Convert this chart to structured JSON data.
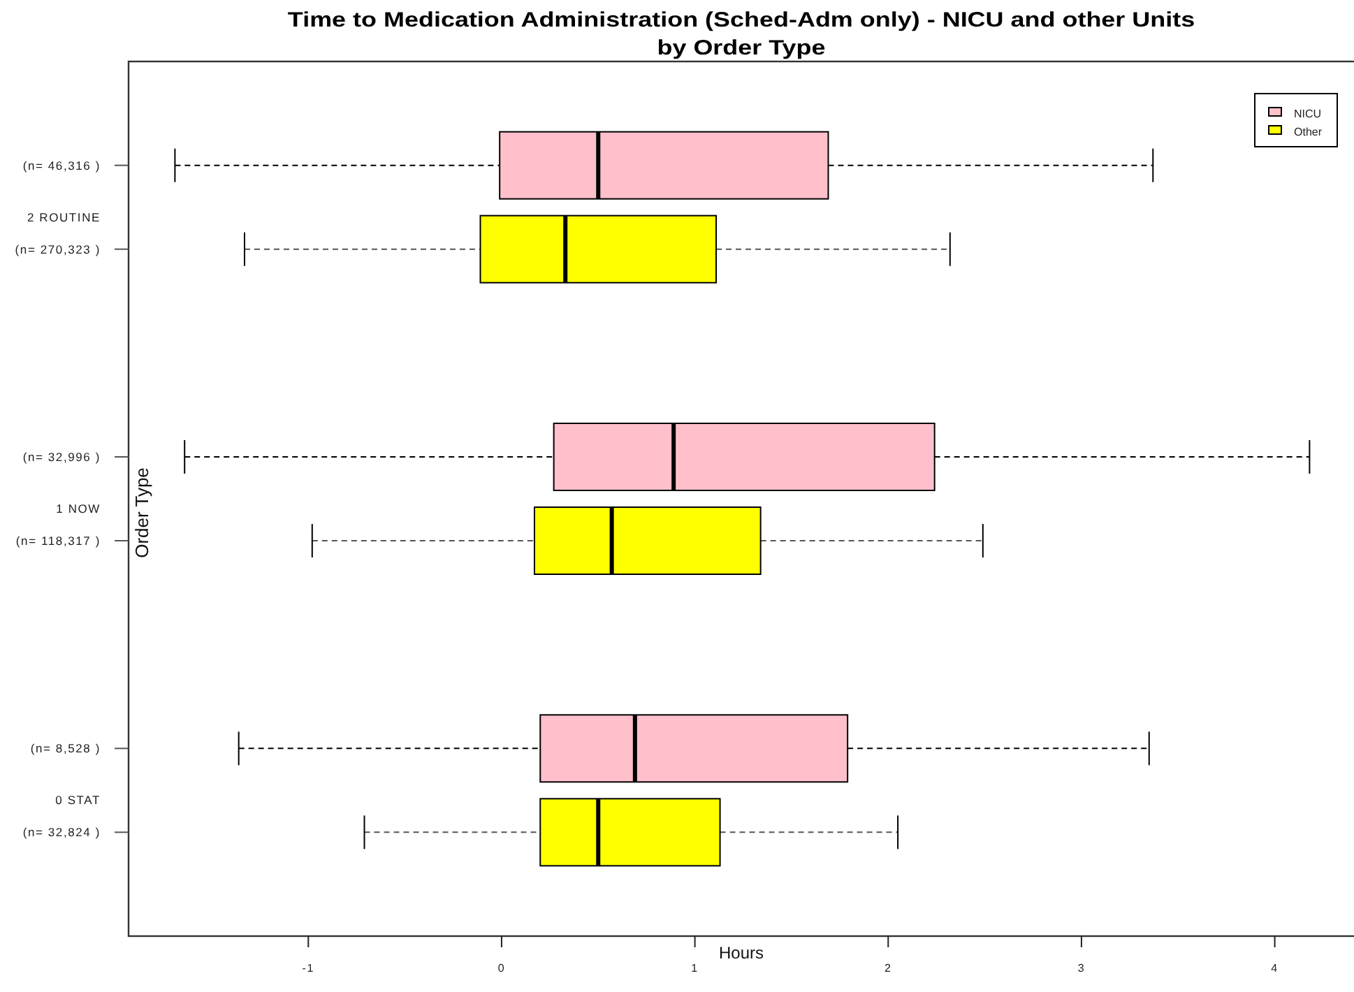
{
  "chart_data": {
    "type": "box",
    "orientation": "horizontal",
    "title": "Time to Medication Administration (Sched-Adm only) - NICU and other Units",
    "subtitle": "by Order Type",
    "xlabel": "Hours",
    "ylabel": "Order Type",
    "categories": [
      "2 ROUTINE",
      "1 NOW",
      "0 STAT"
    ],
    "xlim": [
      -1.93,
      4.41
    ],
    "xticks": [
      -1,
      0,
      1,
      2,
      3,
      4
    ],
    "legend": "top right",
    "series": [
      {
        "name": "NICU",
        "color": "#ffc0cb",
        "boxes": [
          {
            "low": -1.69,
            "q1": -0.01,
            "median": 0.5,
            "q3": 1.69,
            "high": 3.37
          },
          {
            "low": -1.64,
            "q1": 0.27,
            "median": 0.89,
            "q3": 2.24,
            "high": 4.18
          },
          {
            "low": -1.36,
            "q1": 0.2,
            "median": 0.69,
            "q3": 1.79,
            "high": 3.35
          }
        ],
        "value_labels": [
          "(n= 46,316 )",
          "(n= 32,996 )",
          "(n= 8,528 )"
        ]
      },
      {
        "name": "Other",
        "color": "#ffff00",
        "boxes": [
          {
            "low": -1.33,
            "q1": -0.11,
            "median": 0.33,
            "q3": 1.11,
            "high": 2.32
          },
          {
            "low": -0.98,
            "q1": 0.17,
            "median": 0.57,
            "q3": 1.34,
            "high": 2.49
          },
          {
            "low": -0.71,
            "q1": 0.2,
            "median": 0.5,
            "q3": 1.13,
            "high": 2.05
          }
        ],
        "value_labels": [
          "(n= 270,323 )",
          "(n= 118,317 )",
          "(n= 32,824 )"
        ]
      }
    ]
  }
}
